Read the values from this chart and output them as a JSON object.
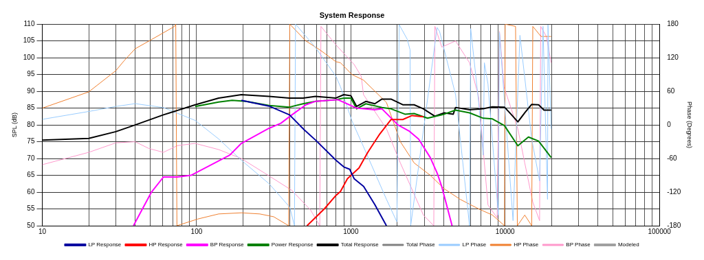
{
  "chart_data": {
    "type": "line",
    "title": "System Response",
    "ylabel": "SPL (dB)",
    "y2label": "Phase (Degrees)",
    "xlim": [
      10,
      100000
    ],
    "ylim": [
      50,
      110
    ],
    "y2lim": [
      -180,
      180
    ],
    "log": "x",
    "grid": true,
    "legend": "bottom",
    "marker": "none",
    "line_style": "solid",
    "yticks": [
      50,
      55,
      60,
      65,
      70,
      75,
      80,
      85,
      90,
      95,
      100,
      105,
      110
    ],
    "y2ticks": [
      -180,
      -120,
      -60,
      0,
      60,
      120,
      180
    ],
    "xticks": [
      10,
      {
        "value": 20,
        "label": null
      },
      {
        "value": 30,
        "label": null
      },
      {
        "value": 40,
        "label": null
      },
      {
        "value": 50,
        "label": null
      },
      {
        "value": 60,
        "label": null
      },
      {
        "value": 70,
        "label": null
      },
      {
        "value": 80,
        "label": null
      },
      {
        "value": 90,
        "label": null
      },
      100,
      {
        "value": 200,
        "label": null
      },
      {
        "value": 300,
        "label": null
      },
      {
        "value": 400,
        "label": null
      },
      {
        "value": 500,
        "label": null
      },
      {
        "value": 600,
        "label": null
      },
      {
        "value": 700,
        "label": null
      },
      {
        "value": 800,
        "label": null
      },
      {
        "value": 900,
        "label": null
      },
      1000,
      {
        "value": 2000,
        "label": null
      },
      {
        "value": 3000,
        "label": null
      },
      {
        "value": 4000,
        "label": null
      },
      {
        "value": 5000,
        "label": null
      },
      {
        "value": 6000,
        "label": null
      },
      {
        "value": 7000,
        "label": null
      },
      {
        "value": 8000,
        "label": null
      },
      {
        "value": 9000,
        "label": null
      },
      10000,
      {
        "value": 20000,
        "label": null
      },
      {
        "value": 30000,
        "label": null
      },
      {
        "value": 40000,
        "label": null
      },
      {
        "value": 50000,
        "label": null
      },
      {
        "value": 60000,
        "label": null
      },
      {
        "value": 70000,
        "label": null
      },
      {
        "value": 80000,
        "label": null
      },
      {
        "value": 90000,
        "label": null
      },
      100000
    ],
    "series": [
      {
        "name": "LP Response",
        "color": "#0000a0",
        "x": [
          195,
          295,
          400,
          500,
          590,
          800,
          900,
          983,
          1050,
          1210,
          1430,
          1700
        ],
        "values": [
          87.3,
          85.6,
          83,
          78.5,
          75.5,
          69.5,
          67.5,
          66.8,
          64,
          61.7,
          56.3,
          50
        ]
      },
      {
        "name": "HP Response",
        "color": "#ff0000",
        "x": [
          520,
          673,
          800,
          857,
          950,
          1130,
          1290,
          1540,
          1820,
          2170,
          2490,
          2950
        ],
        "values": [
          50,
          55,
          59,
          60.2,
          64,
          67.2,
          71.9,
          77.3,
          81.6,
          81.6,
          82.8,
          82.4
        ]
      },
      {
        "name": "BP Response",
        "color": "#ff00ff",
        "x": [
          39,
          51,
          61,
          75,
          92,
          129,
          164,
          195,
          295,
          352,
          415,
          511,
          587,
          825,
          1090,
          1430,
          1590,
          2020,
          2400,
          2750,
          3270,
          3630,
          3880,
          4530
        ],
        "values": [
          50,
          60,
          64.5,
          64.5,
          65,
          68.5,
          71,
          74.5,
          79,
          80.5,
          83,
          86,
          87,
          87.5,
          85,
          84.5,
          84.8,
          80,
          78.1,
          75.8,
          70.3,
          65.6,
          61.7,
          50
        ]
      },
      {
        "name": "Power Response",
        "color": "#008000",
        "x": [
          98,
          139,
          170,
          210,
          295,
          400,
          490,
          590,
          800,
          900,
          1000,
          1090,
          1250,
          1590,
          1820,
          2240,
          2570,
          3140,
          4030,
          4770,
          5880,
          7210,
          8270,
          9900,
          12090,
          14150,
          16470,
          19880
        ],
        "values": [
          85.5,
          86.8,
          87.3,
          87,
          85.8,
          85.3,
          86.3,
          87,
          87.5,
          88,
          88,
          84.8,
          86.3,
          85.2,
          84.8,
          83.2,
          83.4,
          82,
          83.2,
          84.4,
          83.6,
          82,
          81.8,
          79.8,
          73.8,
          76.4,
          75.2,
          70.3
        ]
      },
      {
        "name": "Total Response",
        "color": "#000000",
        "x": [
          10,
          20,
          30,
          40,
          61,
          98,
          139,
          195,
          295,
          400,
          490,
          590,
          800,
          900,
          1000,
          1090,
          1250,
          1430,
          1590,
          1820,
          2170,
          2570,
          2950,
          3500,
          4030,
          4610,
          4770,
          5880,
          7210,
          8270,
          9900,
          10900,
          12090,
          13400,
          14860,
          16470,
          17860,
          19880
        ],
        "values": [
          75.5,
          76,
          78,
          80,
          83,
          86,
          88,
          89,
          88.5,
          88,
          88,
          88.5,
          88,
          89,
          88.7,
          85.5,
          87,
          86.3,
          87.7,
          87.7,
          86,
          86,
          84.8,
          82.6,
          83.6,
          83.2,
          85.2,
          84.5,
          84.8,
          85.4,
          85.3,
          83.2,
          80.9,
          83.6,
          86.1,
          86,
          84.4,
          84.4
        ]
      },
      {
        "name": "Total Phase",
        "color": "#808080",
        "axis": "y2"
      },
      {
        "name": "LP Phase",
        "color": "#99ccff",
        "axis": "y2",
        "x": [
          10,
          20,
          30,
          40,
          61,
          98,
          139,
          195,
          295,
          402,
          431,
          438,
          587,
          800,
          857,
          1017,
          1208,
          1434,
          1702,
          1987,
          2057,
          2320,
          2420,
          2443,
          3622,
          3759,
          4771,
          5877,
          5979,
          6737,
          7210,
          7334,
          7740,
          9031,
          9188,
          9826,
          11250,
          12470,
          14860,
          16720,
          17600,
          18820,
          18950,
          19880
        ],
        "values": [
          10,
          24,
          33,
          38,
          31,
          8,
          -25,
          -63,
          -105,
          -147,
          -180,
          180,
          139,
          87,
          68,
          7,
          -39,
          -86,
          -133,
          -173,
          179,
          153,
          134,
          -180,
          174,
          167,
          54,
          -180,
          172,
          40,
          -54,
          111,
          73,
          -161,
          165,
          54,
          -171,
          160,
          -25,
          -100,
          176,
          -133,
          179,
          -7
        ]
      },
      {
        "name": "HP Phase",
        "color": "#f08030",
        "axis": "y2",
        "x": [
          10,
          20,
          30,
          34,
          40,
          53,
          72,
          73.3,
          74.6,
          102,
          139,
          195,
          257,
          316,
          395,
          402,
          511,
          630,
          800,
          857,
          1017,
          1208,
          1702,
          2094,
          2574,
          3272,
          4026,
          5117,
          6737,
          8272,
          9896,
          10000,
          11680,
          12000,
          13400,
          14860,
          15110,
          17080,
          19880
        ],
        "values": [
          30,
          59,
          97,
          115,
          136,
          155,
          176,
          180,
          -180,
          -168,
          -159,
          -157,
          -159,
          -164,
          -180,
          180,
          150,
          134,
          113,
          111,
          90,
          80,
          40,
          -30,
          -68,
          -90,
          -114,
          -133,
          -150,
          -161,
          -180,
          180,
          176,
          -180,
          -161,
          -180,
          176,
          158,
          158
        ]
      },
      {
        "name": "BP Phase",
        "color": "#ff99cc",
        "axis": "y2",
        "x": [
          10,
          20,
          30,
          40,
          49,
          61,
          75,
          98,
          139,
          195,
          295,
          415,
          548,
          629,
          640,
          800,
          1050,
          1167,
          1208,
          1702,
          2094,
          2574,
          2951,
          3447,
          3506,
          3884,
          4771,
          5877,
          6737,
          7740,
          8875,
          9188,
          9826,
          12090,
          13400,
          15110,
          16720,
          17000,
          18500,
          19880
        ],
        "values": [
          -71,
          -49,
          -32,
          -30,
          -42,
          -49,
          -37,
          -33,
          -44,
          -60,
          -91,
          -117,
          -152,
          -180,
          176,
          143,
          108,
          87,
          54,
          -7,
          -68,
          -124,
          -161,
          -180,
          176,
          139,
          150,
          111,
          50,
          -143,
          -166,
          167,
          68,
          -7,
          -68,
          -138,
          -171,
          176,
          158,
          111
        ]
      },
      {
        "name": "Modeled",
        "color": "#a0a0a0"
      }
    ]
  }
}
